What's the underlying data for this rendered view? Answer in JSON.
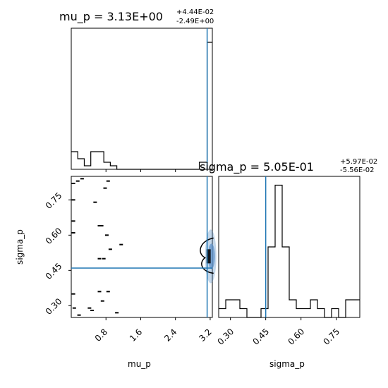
{
  "chart_data": [
    {
      "type": "histogram",
      "panel": "mu_p marginal",
      "title": {
        "main": "mu_p = 3.13E+00",
        "sup": "+4.44E-02",
        "sub": "-2.49E+00"
      },
      "xlim": [
        0.0,
        3.25
      ],
      "bins_x": [
        0.0,
        0.15,
        0.3,
        0.45,
        0.6,
        0.75,
        0.9,
        1.05,
        1.2,
        2.95,
        3.05,
        3.13,
        3.2,
        3.25
      ],
      "counts": [
        5,
        3,
        1,
        5,
        5,
        2,
        1,
        0,
        0,
        2,
        2,
        36,
        36
      ],
      "ylim": [
        0,
        40
      ],
      "truth_x": 3.13,
      "truth_color": "#1f77b4",
      "line_color": "#000000"
    },
    {
      "type": "histogram",
      "panel": "sigma_p marginal",
      "title": {
        "main": "sigma_p = 5.05E-01",
        "sup": "+5.97E-02",
        "sub": "-5.56E-02"
      },
      "xlabel": "sigma_p",
      "xticks": [
        "0.30",
        "0.45",
        "0.60",
        "0.75"
      ],
      "xtick_values": [
        0.3,
        0.45,
        0.6,
        0.75
      ],
      "xlim": [
        0.25,
        0.85
      ],
      "bins": [
        0.25,
        0.28,
        0.31,
        0.34,
        0.37,
        0.4,
        0.43,
        0.46,
        0.49,
        0.52,
        0.55,
        0.58,
        0.61,
        0.64,
        0.67,
        0.7,
        0.73,
        0.76,
        0.79,
        0.82,
        0.85
      ],
      "counts": [
        1,
        2,
        2,
        1,
        0,
        0,
        1,
        8,
        15,
        8,
        2,
        1,
        1,
        2,
        1,
        0,
        1,
        0,
        2,
        2
      ],
      "ylim": [
        0,
        16
      ],
      "truth_x": 0.45,
      "truth_color": "#1f77b4",
      "line_color": "#000000"
    },
    {
      "type": "scatter",
      "panel": "mu_p vs sigma_p joint",
      "xlabel": "mu_p",
      "ylabel": "sigma_p",
      "xticks": [
        "0.8",
        "1.6",
        "2.4",
        "3.2"
      ],
      "xtick_values": [
        0.8,
        1.6,
        2.4,
        3.2
      ],
      "yticks": [
        "0.30",
        "0.45",
        "0.60",
        "0.75"
      ],
      "ytick_values": [
        0.3,
        0.45,
        0.6,
        0.75
      ],
      "xlim": [
        0.0,
        3.25
      ],
      "ylim": [
        0.25,
        0.85
      ],
      "truth_x": 3.13,
      "truth_y": 0.46,
      "truth_color": "#1f77b4",
      "points": [
        [
          0.05,
          0.82
        ],
        [
          0.15,
          0.83
        ],
        [
          0.25,
          0.84
        ],
        [
          0.85,
          0.83
        ],
        [
          0.78,
          0.8
        ],
        [
          0.05,
          0.75
        ],
        [
          0.55,
          0.74
        ],
        [
          0.05,
          0.66
        ],
        [
          0.65,
          0.64
        ],
        [
          0.7,
          0.64
        ],
        [
          0.05,
          0.61
        ],
        [
          0.82,
          0.6
        ],
        [
          1.15,
          0.56
        ],
        [
          0.9,
          0.54
        ],
        [
          0.65,
          0.5
        ],
        [
          0.75,
          0.5
        ],
        [
          0.05,
          0.35
        ],
        [
          0.65,
          0.36
        ],
        [
          0.85,
          0.36
        ],
        [
          0.07,
          0.29
        ],
        [
          0.42,
          0.29
        ],
        [
          0.48,
          0.28
        ],
        [
          0.72,
          0.32
        ],
        [
          1.05,
          0.27
        ],
        [
          0.18,
          0.26
        ]
      ],
      "density_center": [
        3.18,
        0.51
      ],
      "density_color": "#5a8fc7",
      "contour_color": "#000000"
    }
  ]
}
